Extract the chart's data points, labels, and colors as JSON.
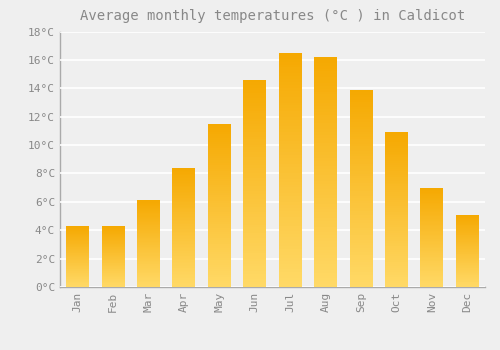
{
  "title": "Average monthly temperatures (°C ) in Caldicot",
  "months": [
    "Jan",
    "Feb",
    "Mar",
    "Apr",
    "May",
    "Jun",
    "Jul",
    "Aug",
    "Sep",
    "Oct",
    "Nov",
    "Dec"
  ],
  "temperatures": [
    4.3,
    4.3,
    6.1,
    8.4,
    11.5,
    14.6,
    16.5,
    16.2,
    13.9,
    10.9,
    7.0,
    5.1
  ],
  "bar_color_bottom": "#FFD966",
  "bar_color_top": "#F5A800",
  "background_color": "#EFEFEF",
  "grid_color": "#FFFFFF",
  "text_color": "#888888",
  "spine_color": "#AAAAAA",
  "ylim": [
    0,
    18
  ],
  "yticks": [
    0,
    2,
    4,
    6,
    8,
    10,
    12,
    14,
    16,
    18
  ],
  "ytick_labels": [
    "0°C",
    "2°C",
    "4°C",
    "6°C",
    "8°C",
    "10°C",
    "12°C",
    "14°C",
    "16°C",
    "18°C"
  ],
  "title_fontsize": 10,
  "tick_fontsize": 8,
  "bar_width": 0.65
}
